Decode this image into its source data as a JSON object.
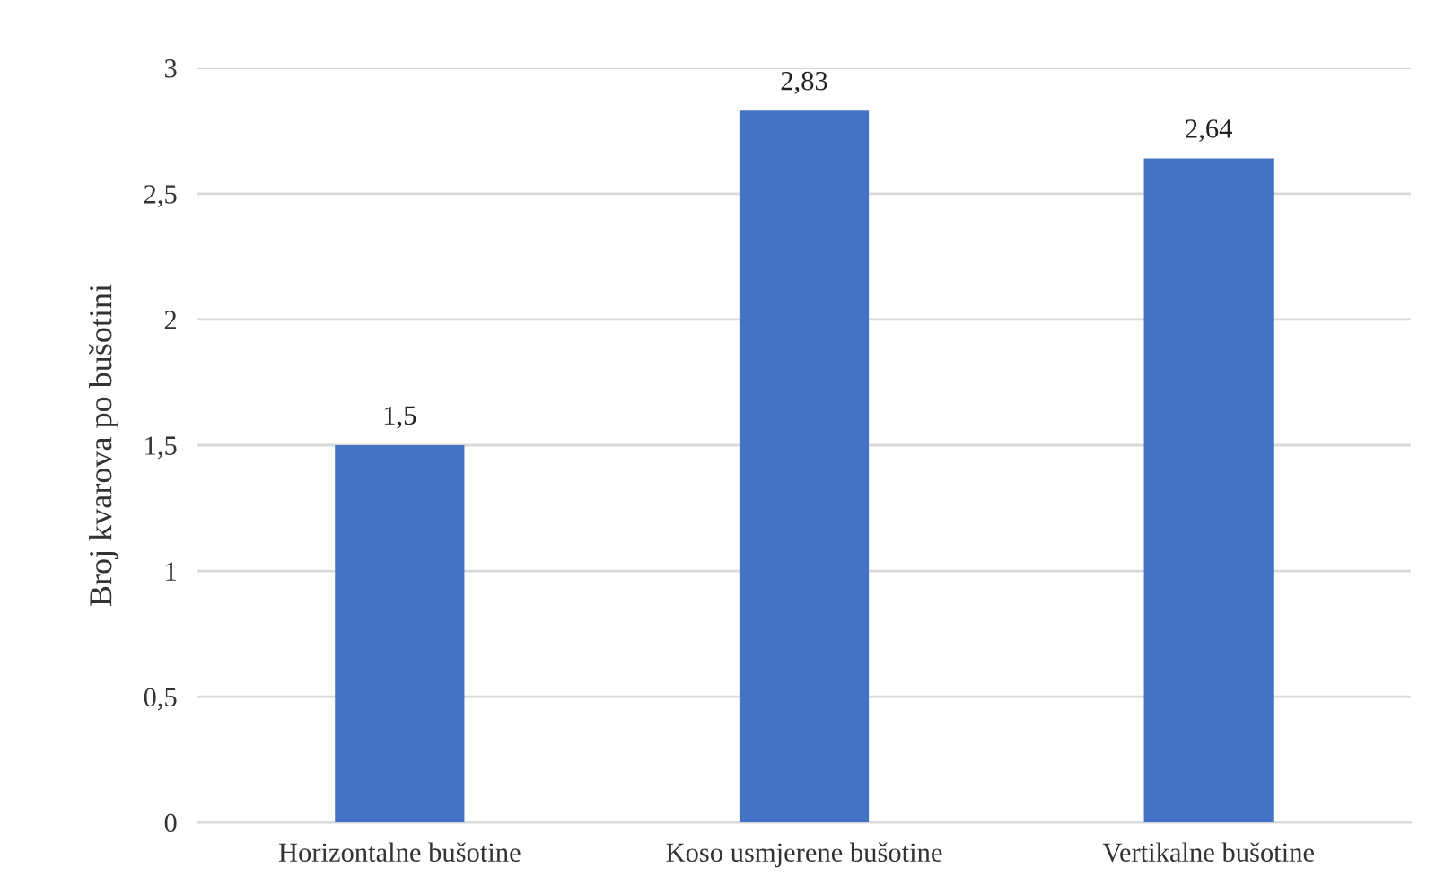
{
  "chart_data": {
    "type": "bar",
    "ylabel": "Broj kvarova po bušotini",
    "categories": [
      "Horizontalne bušotine",
      "Koso usmjerene bušotine",
      "Vertikalne bušotine"
    ],
    "values": [
      1.5,
      2.83,
      2.64
    ],
    "value_labels": [
      "1,5",
      "2,83",
      "2,64"
    ],
    "color": "#4472c4",
    "ylim": [
      0,
      3
    ],
    "yticks": [
      0,
      {
        "value": 0.5,
        "label": "0,5"
      },
      1,
      {
        "value": 1.5,
        "label": "1,5"
      },
      2,
      {
        "value": 2.5,
        "label": "2,5"
      },
      3
    ],
    "grid": "y",
    "legend": false
  }
}
